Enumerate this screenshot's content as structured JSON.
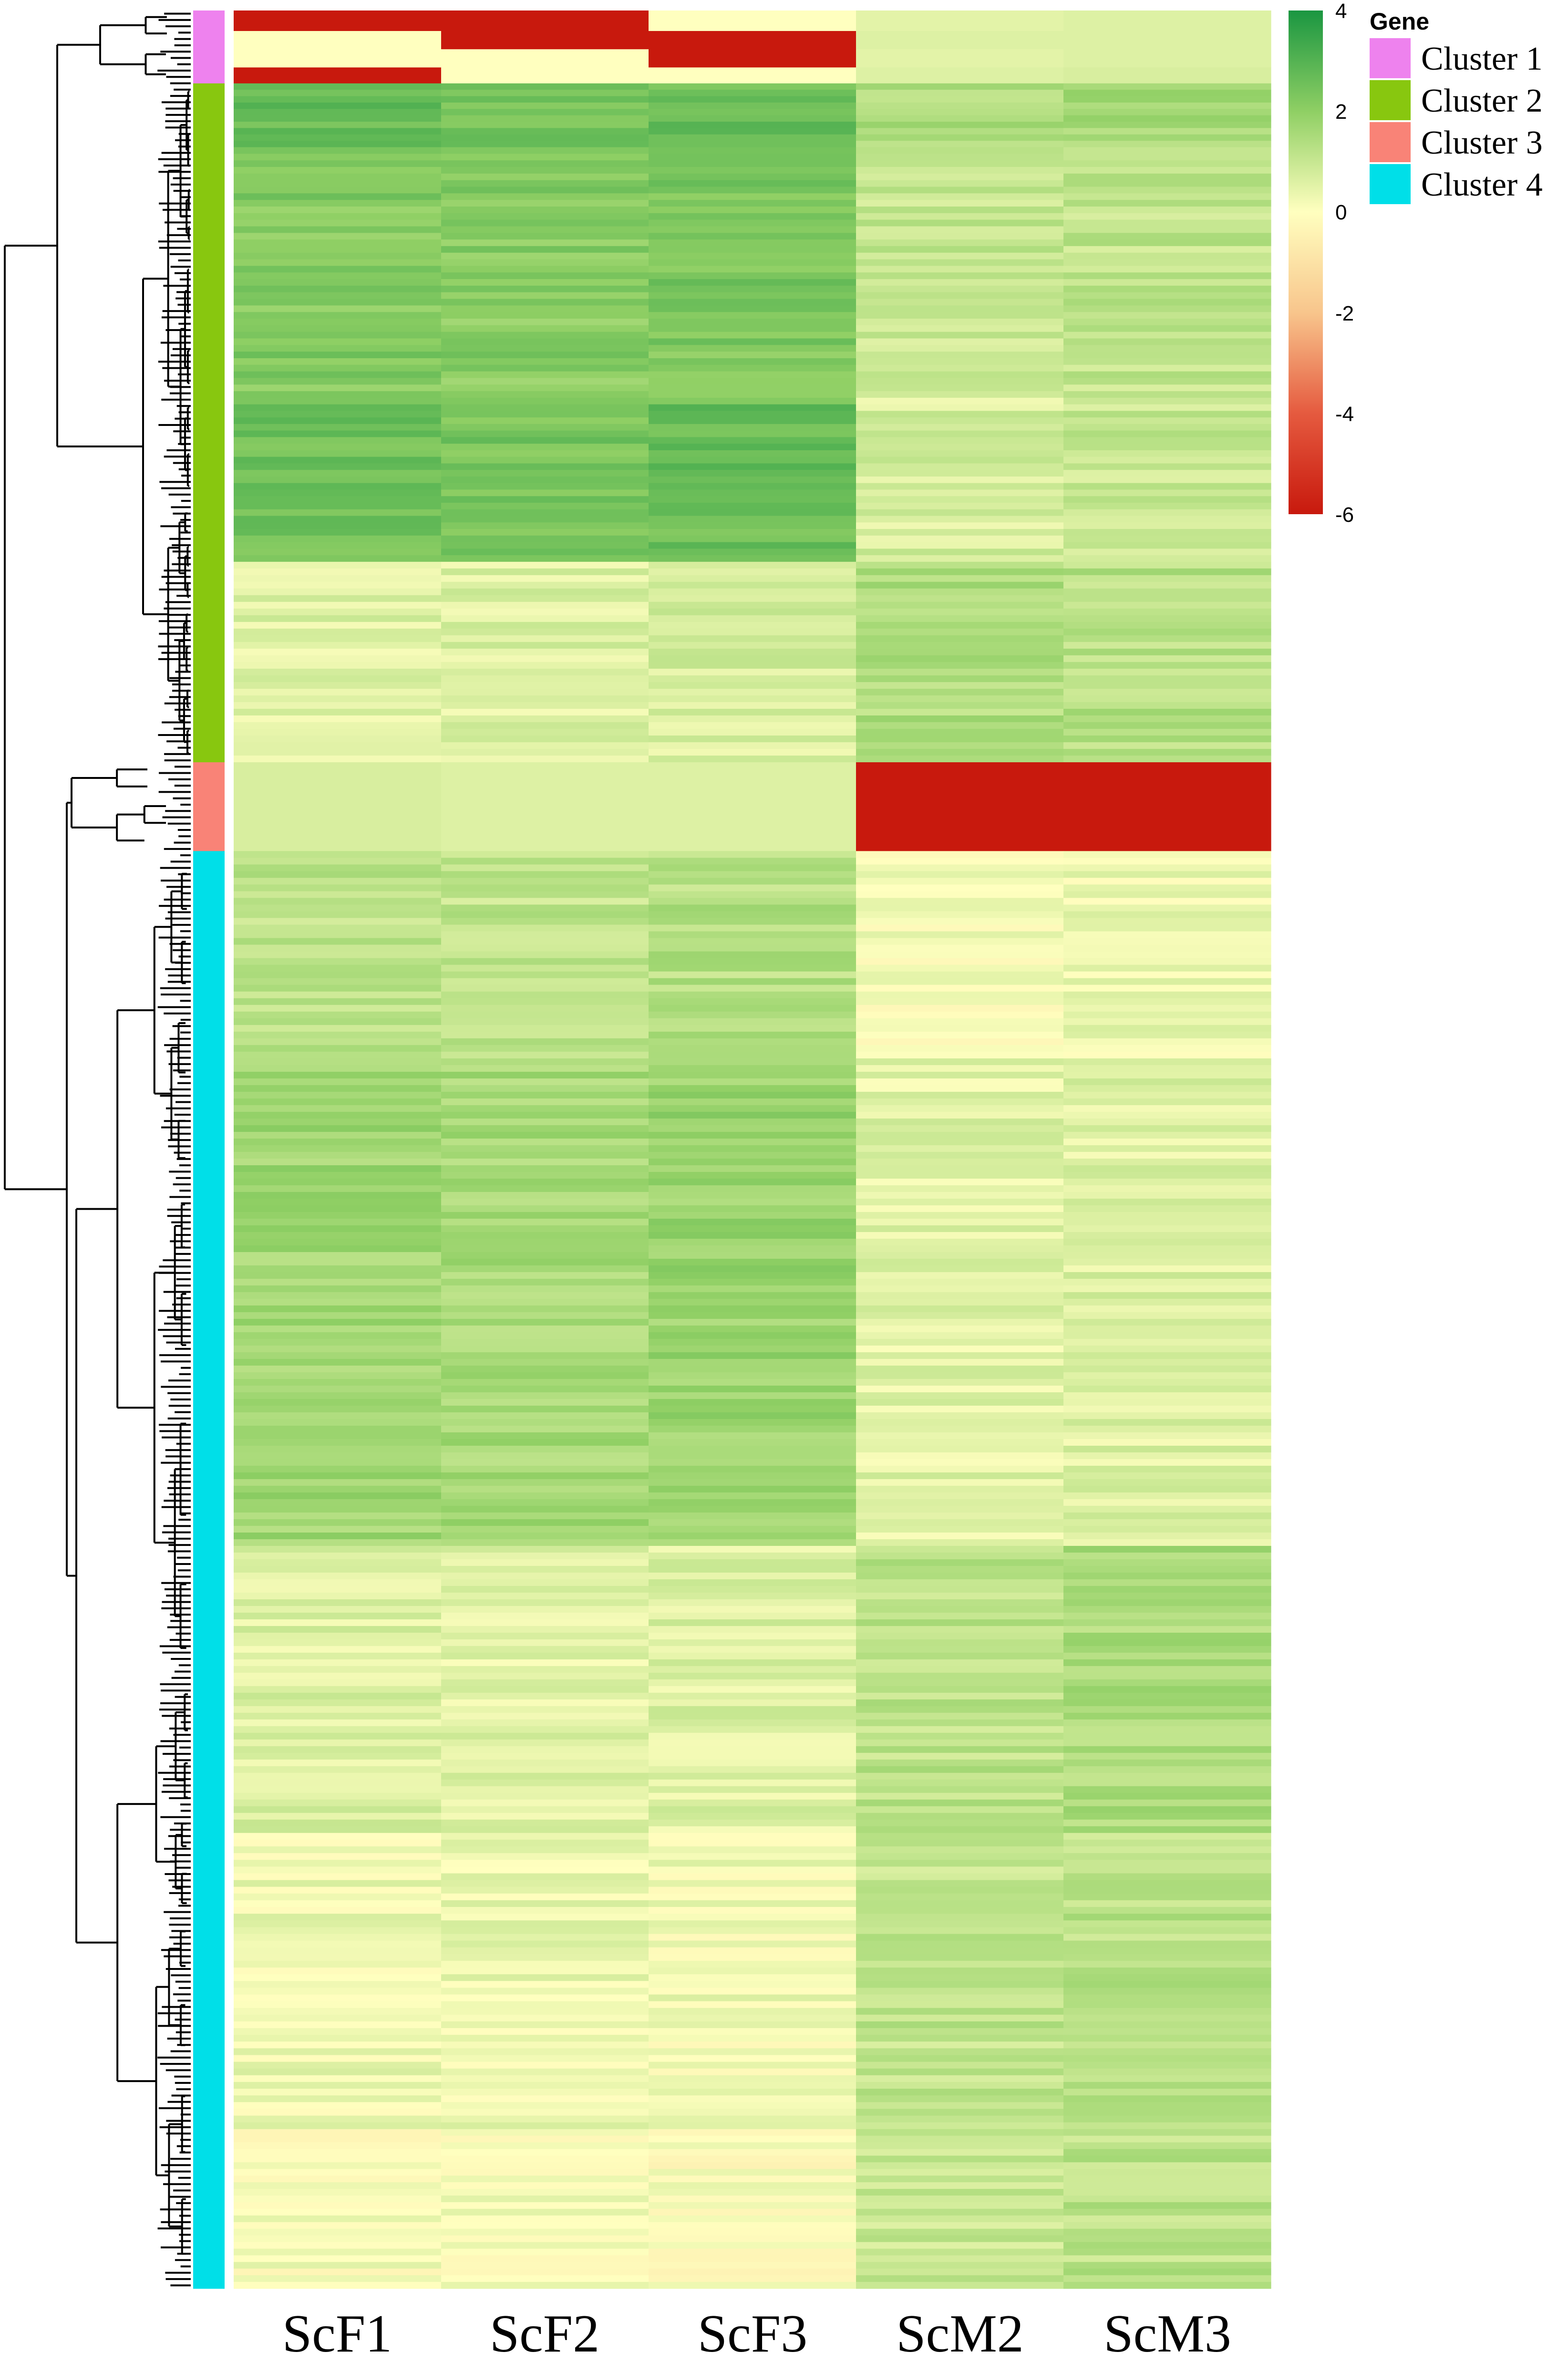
{
  "chart_data": {
    "type": "heatmap",
    "title": "",
    "xlabel": "",
    "ylabel": "",
    "columns": [
      "ScF1",
      "ScF2",
      "ScF3",
      "ScM2",
      "ScM3"
    ],
    "value_range": [
      -6,
      4
    ],
    "color_scale": {
      "ticks": [
        "4",
        "2",
        "0",
        "-2",
        "-4",
        "-6"
      ],
      "stops": [
        {
          "value": 4,
          "color": "#1a9641"
        },
        {
          "value": 2,
          "color": "#8fcf64"
        },
        {
          "value": 0,
          "color": "#ffffbf"
        },
        {
          "value": -2,
          "color": "#f8c58c"
        },
        {
          "value": -4,
          "color": "#e55a3f"
        },
        {
          "value": -6,
          "color": "#c8190d"
        }
      ]
    },
    "row_annotation": {
      "title": "Gene",
      "clusters": [
        {
          "name": "Cluster 1",
          "color": "#ee82ee",
          "fraction": 0.032
        },
        {
          "name": "Cluster 2",
          "color": "#88c70f",
          "fraction": 0.298
        },
        {
          "name": "Cluster 3",
          "color": "#f98377",
          "fraction": 0.039
        },
        {
          "name": "Cluster 4",
          "color": "#00dfe8",
          "fraction": 0.631
        }
      ]
    },
    "segments": [
      {
        "from": 0.0,
        "to": 0.009,
        "values": [
          -6,
          -6,
          0,
          0.5,
          0.6
        ]
      },
      {
        "from": 0.009,
        "to": 0.017,
        "values": [
          0,
          -6,
          -6,
          0.6,
          0.6
        ]
      },
      {
        "from": 0.017,
        "to": 0.025,
        "values": [
          0,
          0,
          -6,
          0.5,
          0.6
        ]
      },
      {
        "from": 0.025,
        "to": 0.032,
        "values": [
          -6,
          0,
          0,
          0.6,
          0.7
        ]
      },
      {
        "from": 0.032,
        "to": 0.06,
        "values": [
          2.6,
          2.4,
          2.6,
          1.4,
          1.6
        ]
      },
      {
        "from": 0.06,
        "to": 0.17,
        "values": [
          2.2,
          2.1,
          2.3,
          1.0,
          1.1
        ]
      },
      {
        "from": 0.17,
        "to": 0.242,
        "values": [
          2.5,
          2.4,
          2.6,
          0.7,
          1.0
        ]
      },
      {
        "from": 0.242,
        "to": 0.33,
        "values": [
          0.6,
          0.6,
          0.7,
          1.4,
          1.3
        ]
      },
      {
        "from": 0.33,
        "to": 0.369,
        "values": [
          0.7,
          0.6,
          0.6,
          -6,
          -6
        ]
      },
      {
        "from": 0.369,
        "to": 0.46,
        "values": [
          1.2,
          1.1,
          1.3,
          0.1,
          0.3
        ]
      },
      {
        "from": 0.46,
        "to": 0.674,
        "values": [
          1.7,
          1.6,
          1.8,
          0.5,
          0.6
        ]
      },
      {
        "from": 0.674,
        "to": 0.8,
        "values": [
          0.6,
          0.5,
          0.6,
          1.2,
          1.5
        ]
      },
      {
        "from": 0.8,
        "to": 0.93,
        "values": [
          0.3,
          0.3,
          0.2,
          1.1,
          1.2
        ]
      },
      {
        "from": 0.93,
        "to": 1.0,
        "values": [
          0.1,
          0.1,
          0.0,
          1.0,
          1.2
        ]
      }
    ]
  }
}
